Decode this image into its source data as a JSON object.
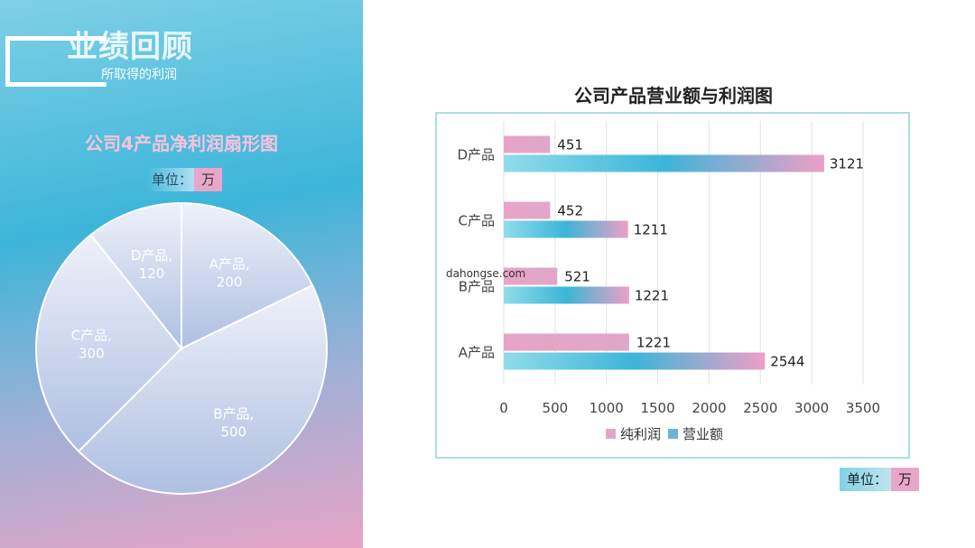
{
  "section": {
    "title": "业绩回顾",
    "subtitle": "所取得的利润"
  },
  "pie": {
    "title": "公司4产品净利润扇形图",
    "unit_label": "单位：",
    "unit_value": "万"
  },
  "bar": {
    "title": "公司产品营业额与利润图",
    "unit_label": "单位：",
    "unit_value": "万"
  },
  "watermark": "dahongse.com",
  "colors": {
    "pink": "#e8a6c8",
    "teal": "#3cb5d9",
    "light_teal": "#8fdcea",
    "border": "#a9dde6"
  },
  "chart_data": [
    {
      "type": "pie",
      "title": "公司4产品净利润扇形图",
      "slices": [
        {
          "name": "A产品",
          "value": 200
        },
        {
          "name": "B产品",
          "value": 500
        },
        {
          "name": "C产品",
          "value": 300
        },
        {
          "name": "D产品",
          "value": 120
        }
      ]
    },
    {
      "type": "bar",
      "orientation": "horizontal",
      "title": "公司产品营业额与利润图",
      "categories": [
        "A产品",
        "B产品",
        "C产品",
        "D产品"
      ],
      "series": [
        {
          "name": "纯利润",
          "values": [
            1221,
            521,
            452,
            451
          ]
        },
        {
          "name": "营业额",
          "values": [
            2544,
            1221,
            1211,
            3121
          ]
        }
      ],
      "xlim": [
        0,
        3500
      ],
      "xticks": [
        0,
        500,
        1000,
        1500,
        2000,
        2500,
        3000,
        3500
      ],
      "grid": true,
      "legend": "bottom"
    }
  ]
}
